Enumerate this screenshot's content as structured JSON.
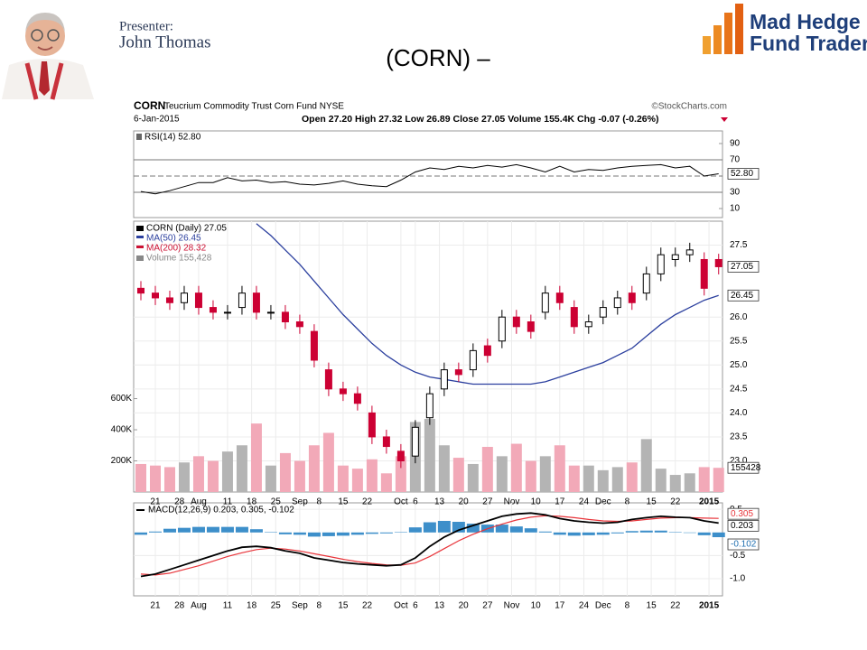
{
  "slide": {
    "presenter_label": "Presenter:",
    "presenter_name": "John Thomas",
    "title": "(CORN) –",
    "logo_line1": "Mad Hedge",
    "logo_line2": "Fund Trader"
  },
  "chart_header": {
    "symbol": "CORN",
    "name": "Teucrium Commodity Trust Corn Fund NYSE",
    "source": "©StockCharts.com",
    "date": "6-Jan-2015",
    "quote": "Open 27.20 High 27.32 Low 26.89 Close 27.05 Volume 155.4K Chg -0.07 (-0.26%)"
  },
  "chart_data": [
    {
      "type": "line",
      "title": "RSI(14) 52.80",
      "x": [
        0,
        3,
        6,
        9,
        12,
        15,
        18,
        21,
        24,
        27,
        30,
        33,
        36,
        39,
        42,
        45,
        48,
        51,
        54,
        57,
        60,
        63,
        66,
        69,
        72,
        75,
        78,
        81,
        84,
        87,
        90,
        93,
        96,
        99,
        102,
        105,
        108,
        111,
        114,
        117,
        120
      ],
      "xlim": [
        -1.5,
        120.8
      ],
      "ylim": [
        0,
        100
      ],
      "yticks": [
        10,
        30,
        70,
        90
      ],
      "bands": [
        30,
        70
      ],
      "midline": 50,
      "series": [
        {
          "color": "#000000",
          "last_label": "52.80",
          "values": [
            31,
            28,
            32,
            37,
            42,
            42,
            48,
            44,
            45,
            42,
            43,
            40,
            39,
            41,
            44,
            40,
            38,
            37,
            45,
            55,
            60,
            58,
            62,
            60,
            63,
            61,
            64,
            60,
            55,
            62,
            55,
            58,
            57,
            60,
            62,
            63,
            64,
            60,
            62,
            50,
            52.8
          ]
        }
      ]
    },
    {
      "type": "candlestick",
      "x": [
        0,
        3,
        6,
        9,
        12,
        15,
        18,
        21,
        24,
        27,
        30,
        33,
        36,
        39,
        42,
        45,
        48,
        51,
        54,
        57,
        60,
        63,
        66,
        69,
        72,
        75,
        78,
        81,
        84,
        87,
        90,
        93,
        96,
        99,
        102,
        105,
        108,
        111,
        114,
        117,
        120
      ],
      "xlim": [
        -1.5,
        120.8
      ],
      "ylim": [
        22.35,
        28
      ],
      "yticks": [
        27.5,
        {
          "value": 26,
          "label": "26.0"
        },
        25.5,
        {
          "value": 25,
          "label": "25.0"
        },
        24.5,
        {
          "value": 24,
          "label": "24.0"
        },
        23.5,
        {
          "value": 23,
          "label": "23.0"
        }
      ],
      "xticks": [
        {
          "value": 3,
          "label": "21"
        },
        {
          "value": 8,
          "label": "28"
        },
        {
          "value": 12,
          "label": "Aug"
        },
        {
          "value": 18,
          "label": "11"
        },
        {
          "value": 23,
          "label": "18"
        },
        {
          "value": 28,
          "label": "25"
        },
        {
          "value": 33,
          "label": "Sep"
        },
        {
          "value": 37,
          "label": "8"
        },
        {
          "value": 42,
          "label": "15"
        },
        {
          "value": 47,
          "label": "22"
        },
        {
          "value": 54,
          "label": "Oct"
        },
        {
          "value": 57,
          "label": "6"
        },
        {
          "value": 62,
          "label": "13"
        },
        {
          "value": 67,
          "label": "20"
        },
        {
          "value": 72,
          "label": "27"
        },
        {
          "value": 77,
          "label": "Nov"
        },
        {
          "value": 82,
          "label": "10"
        },
        {
          "value": 87,
          "label": "17"
        },
        {
          "value": 92,
          "label": "24"
        },
        {
          "value": 96,
          "label": "Dec"
        },
        {
          "value": 101,
          "label": "8"
        },
        {
          "value": 106,
          "label": "15"
        },
        {
          "value": 111,
          "label": "22"
        },
        {
          "value": 118,
          "label": "2015"
        }
      ],
      "grid": true,
      "up_color": "#000000",
      "down_color": "#cc0033",
      "open": [
        26.6,
        26.5,
        26.4,
        26.3,
        26.5,
        26.2,
        26.1,
        26.2,
        26.5,
        26.1,
        26.1,
        25.9,
        25.7,
        24.9,
        24.5,
        24.4,
        24.0,
        23.5,
        23.2,
        23.1,
        23.9,
        24.5,
        24.9,
        24.9,
        25.4,
        25.5,
        26.0,
        25.9,
        26.1,
        26.5,
        26.2,
        25.8,
        26.0,
        26.2,
        26.5,
        26.5,
        26.9,
        27.2,
        27.3,
        27.2,
        27.2
      ],
      "high": [
        26.75,
        26.65,
        26.55,
        26.65,
        26.65,
        26.35,
        26.25,
        26.65,
        26.65,
        26.25,
        26.25,
        26.05,
        25.85,
        25.05,
        24.65,
        24.55,
        24.15,
        23.65,
        23.35,
        23.85,
        24.55,
        25.05,
        25.05,
        25.45,
        25.55,
        26.15,
        26.15,
        26.05,
        26.65,
        26.65,
        26.35,
        26.05,
        26.35,
        26.55,
        26.65,
        27.05,
        27.45,
        27.45,
        27.55,
        27.35,
        27.32
      ],
      "low": [
        26.35,
        26.25,
        26.15,
        26.15,
        26.05,
        25.95,
        25.95,
        26.05,
        25.95,
        25.95,
        25.75,
        25.65,
        24.95,
        24.35,
        24.25,
        24.05,
        23.35,
        23.15,
        22.85,
        22.95,
        23.75,
        24.35,
        24.65,
        24.75,
        25.05,
        25.35,
        25.65,
        25.55,
        25.95,
        26.15,
        25.65,
        25.65,
        25.85,
        26.05,
        26.15,
        26.35,
        26.75,
        27.05,
        27.15,
        26.45,
        26.89
      ],
      "close": [
        26.5,
        26.4,
        26.3,
        26.5,
        26.2,
        26.1,
        26.1,
        26.5,
        26.1,
        26.1,
        25.9,
        25.8,
        25.1,
        24.5,
        24.4,
        24.2,
        23.5,
        23.3,
        23.0,
        23.7,
        24.4,
        24.9,
        24.8,
        25.3,
        25.2,
        26.0,
        25.8,
        25.7,
        26.5,
        26.3,
        25.8,
        25.9,
        26.2,
        26.4,
        26.3,
        26.9,
        27.3,
        27.3,
        27.4,
        26.6,
        27.05
      ],
      "ma": {
        "color": "#2b3f9e",
        "values": [
          null,
          null,
          null,
          null,
          null,
          null,
          null,
          null,
          27.95,
          27.7,
          27.4,
          27.1,
          26.75,
          26.4,
          26.05,
          25.75,
          25.45,
          25.2,
          25.0,
          24.85,
          24.75,
          24.7,
          24.65,
          24.6,
          24.6,
          24.6,
          24.6,
          24.6,
          24.65,
          24.75,
          24.85,
          24.95,
          25.05,
          25.2,
          25.35,
          25.6,
          25.85,
          26.05,
          26.2,
          26.35,
          26.45
        ]
      },
      "volume": {
        "up_color": "#b4b4b4",
        "down_color": "#f2a9b8",
        "ylim": [
          0,
          1740000
        ],
        "yticks": [
          {
            "value": 200000,
            "label": "200K"
          },
          {
            "value": 400000,
            "label": "400K"
          },
          {
            "value": 600000,
            "label": "600K"
          }
        ],
        "values": [
          180000,
          170000,
          160000,
          190000,
          230000,
          200000,
          260000,
          300000,
          440000,
          170000,
          250000,
          200000,
          300000,
          380000,
          170000,
          150000,
          210000,
          120000,
          230000,
          450000,
          470000,
          300000,
          220000,
          180000,
          290000,
          230000,
          310000,
          200000,
          230000,
          300000,
          170000,
          170000,
          140000,
          160000,
          190000,
          340000,
          150000,
          110000,
          120000,
          160000,
          155428
        ]
      },
      "legend": [
        {
          "name": "CORN (Daily) 27.05",
          "color": "#000000"
        },
        {
          "name": "MA(50) 26.45",
          "color": "#2b3f9e"
        },
        {
          "name": "MA(200) 28.32",
          "color": "#cc1133"
        },
        {
          "name": "Volume 155,428",
          "color": "#888888"
        }
      ]
    },
    {
      "type": "macd",
      "title": "MACD(12,26,9) 0.203, 0.305, -0.102",
      "x": [
        0,
        3,
        6,
        9,
        12,
        15,
        18,
        21,
        24,
        27,
        30,
        33,
        36,
        39,
        42,
        45,
        48,
        51,
        54,
        57,
        60,
        63,
        66,
        69,
        72,
        75,
        78,
        81,
        84,
        87,
        90,
        93,
        96,
        99,
        102,
        105,
        108,
        111,
        114,
        117,
        120
      ],
      "xlim": [
        -1.5,
        120.8
      ],
      "ylim": [
        -1.37,
        0.64
      ],
      "yticks": [
        0.5,
        -0.5,
        {
          "value": -1,
          "label": "-1.0"
        }
      ],
      "xticks": [
        {
          "value": 3,
          "label": "21"
        },
        {
          "value": 8,
          "label": "28"
        },
        {
          "value": 12,
          "label": "Aug"
        },
        {
          "value": 18,
          "label": "11"
        },
        {
          "value": 23,
          "label": "18"
        },
        {
          "value": 28,
          "label": "25"
        },
        {
          "value": 33,
          "label": "Sep"
        },
        {
          "value": 37,
          "label": "8"
        },
        {
          "value": 42,
          "label": "15"
        },
        {
          "value": 47,
          "label": "22"
        },
        {
          "value": 54,
          "label": "Oct"
        },
        {
          "value": 57,
          "label": "6"
        },
        {
          "value": 62,
          "label": "13"
        },
        {
          "value": 67,
          "label": "20"
        },
        {
          "value": 72,
          "label": "27"
        },
        {
          "value": 77,
          "label": "Nov"
        },
        {
          "value": 82,
          "label": "10"
        },
        {
          "value": 87,
          "label": "17"
        },
        {
          "value": 92,
          "label": "24"
        },
        {
          "value": 96,
          "label": "Dec"
        },
        {
          "value": 101,
          "label": "8"
        },
        {
          "value": 106,
          "label": "15"
        },
        {
          "value": 111,
          "label": "22"
        },
        {
          "value": 118,
          "label": "2015"
        }
      ],
      "grid": true,
      "macd": {
        "color": "#000000",
        "values": [
          -0.95,
          -0.9,
          -0.8,
          -0.7,
          -0.6,
          -0.5,
          -0.4,
          -0.32,
          -0.3,
          -0.33,
          -0.4,
          -0.45,
          -0.55,
          -0.6,
          -0.65,
          -0.68,
          -0.7,
          -0.72,
          -0.7,
          -0.55,
          -0.3,
          -0.1,
          0.05,
          0.15,
          0.25,
          0.35,
          0.4,
          0.42,
          0.38,
          0.3,
          0.25,
          0.22,
          0.2,
          0.22,
          0.28,
          0.32,
          0.35,
          0.33,
          0.32,
          0.25,
          0.203
        ]
      },
      "signal": {
        "color": "#e8343a",
        "values": [
          -0.9,
          -0.92,
          -0.88,
          -0.8,
          -0.72,
          -0.62,
          -0.52,
          -0.44,
          -0.37,
          -0.34,
          -0.36,
          -0.4,
          -0.46,
          -0.52,
          -0.58,
          -0.63,
          -0.67,
          -0.7,
          -0.71,
          -0.66,
          -0.52,
          -0.35,
          -0.18,
          -0.04,
          0.08,
          0.18,
          0.27,
          0.33,
          0.36,
          0.35,
          0.32,
          0.28,
          0.25,
          0.24,
          0.25,
          0.28,
          0.31,
          0.32,
          0.32,
          0.31,
          0.305
        ]
      },
      "histogram": {
        "color": "#3d8fca",
        "values": [
          -0.05,
          0.02,
          0.08,
          0.1,
          0.12,
          0.12,
          0.12,
          0.12,
          0.07,
          0.01,
          -0.04,
          -0.05,
          -0.09,
          -0.08,
          -0.07,
          -0.05,
          -0.03,
          -0.02,
          0.01,
          0.11,
          0.22,
          0.25,
          0.23,
          0.19,
          0.17,
          0.17,
          0.13,
          0.09,
          0.02,
          -0.05,
          -0.07,
          -0.06,
          -0.05,
          -0.02,
          0.03,
          0.04,
          0.04,
          0.01,
          0.0,
          -0.06,
          -0.102
        ]
      }
    }
  ]
}
